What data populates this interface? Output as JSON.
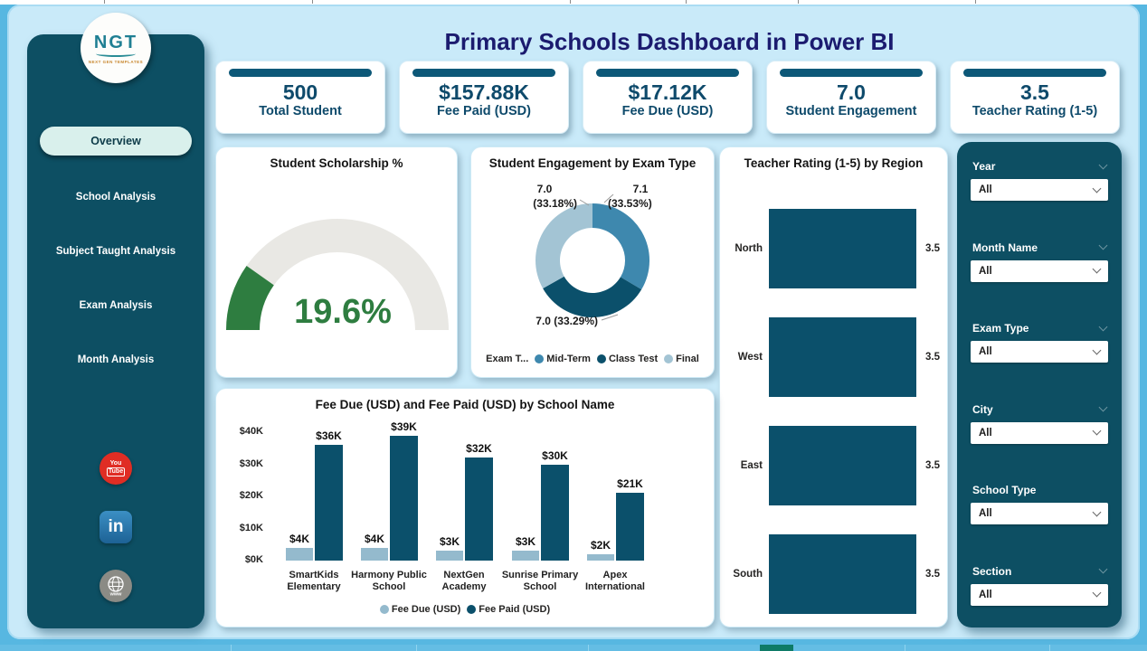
{
  "page": {
    "title": "Primary Schools Dashboard in Power BI"
  },
  "logo": {
    "text": "NGT",
    "subtext": "NEXT GEN TEMPLATES"
  },
  "sidebar": {
    "items": [
      {
        "label": "Overview",
        "active": true
      },
      {
        "label": "School Analysis",
        "active": false
      },
      {
        "label": "Subject Taught Analysis",
        "active": false
      },
      {
        "label": "Exam Analysis",
        "active": false
      },
      {
        "label": "Month Analysis",
        "active": false
      }
    ],
    "social": [
      {
        "name": "youtube-icon",
        "line1": "You",
        "line2": "Tube"
      },
      {
        "name": "linkedin-icon",
        "text": "in"
      },
      {
        "name": "website-icon",
        "text": "www"
      }
    ]
  },
  "kpis": [
    {
      "value": "500",
      "label": "Total Student"
    },
    {
      "value": "$157.88K",
      "label": "Fee Paid (USD)"
    },
    {
      "value": "$17.12K",
      "label": "Fee Due (USD)"
    },
    {
      "value": "7.0",
      "label": "Student Engagement"
    },
    {
      "value": "3.5",
      "label": "Teacher Rating (1-5)"
    }
  ],
  "filters": [
    {
      "label": "Year",
      "value": "All",
      "label_chevron": true
    },
    {
      "label": "Month Name",
      "value": "All",
      "label_chevron": true
    },
    {
      "label": "Exam Type",
      "value": "All",
      "label_chevron": true
    },
    {
      "label": "City",
      "value": "All",
      "label_chevron": true
    },
    {
      "label": "School Type",
      "value": "All",
      "label_chevron": false
    },
    {
      "label": "Section",
      "value": "All",
      "label_chevron": true
    }
  ],
  "chart_data": [
    {
      "id": "scholarship-gauge",
      "type": "gauge",
      "title": "Student Scholarship %",
      "value": 19.6,
      "min": 0,
      "max": 100,
      "value_label": "19.6%",
      "color": "#2e7d40",
      "track_color": "#e9e8e4"
    },
    {
      "id": "engagement-donut",
      "type": "pie",
      "title": "Student Engagement by Exam Type",
      "legend_title": "Exam T...",
      "legend_position": "bottom",
      "slices": [
        {
          "name": "Mid-Term",
          "value": 7.1,
          "pct": 33.53,
          "color": "#3e88ae",
          "value_label": "7.1",
          "pct_label": "(33.53%)"
        },
        {
          "name": "Class Test",
          "value": 7.0,
          "pct": 33.29,
          "color": "#0b506b",
          "callout": "7.0 (33.29%)"
        },
        {
          "name": "Final",
          "value": 7.0,
          "pct": 33.18,
          "color": "#a3c4d4",
          "value_label": "7.0",
          "pct_label": "(33.18%)"
        }
      ]
    },
    {
      "id": "teacher-rating-bars",
      "type": "bar",
      "orientation": "horizontal",
      "title": "Teacher Rating (1-5) by Region",
      "categories": [
        "North",
        "West",
        "East",
        "South"
      ],
      "values": [
        3.5,
        3.5,
        3.5,
        3.5
      ],
      "value_labels": [
        "3.5",
        "3.5",
        "3.5",
        "3.5"
      ],
      "bar_color": "#0b506b",
      "xlim": [
        0,
        3.5
      ],
      "grid": false
    },
    {
      "id": "fee-by-school",
      "type": "bar",
      "orientation": "vertical",
      "title": "Fee Due (USD) and Fee Paid (USD) by School Name",
      "categories": [
        "SmartKids Elementary",
        "Harmony Public School",
        "NextGen Academy",
        "Sunrise Primary School",
        "Apex International"
      ],
      "series": [
        {
          "name": "Fee Due (USD)",
          "color": "#94bacd",
          "values": [
            4,
            4,
            3,
            3,
            2
          ],
          "labels": [
            "$4K",
            "$4K",
            "$3K",
            "$3K",
            "$2K"
          ]
        },
        {
          "name": "Fee Paid (USD)",
          "color": "#0b506b",
          "values": [
            36,
            39,
            32,
            30,
            21
          ],
          "labels": [
            "$36K",
            "$39K",
            "$32K",
            "$30K",
            "$21K"
          ]
        }
      ],
      "y_ticks": [
        "$40K",
        "$30K",
        "$20K",
        "$10K",
        "$0K"
      ],
      "ylim": [
        0,
        40
      ],
      "grid": false,
      "legend_position": "bottom"
    }
  ]
}
